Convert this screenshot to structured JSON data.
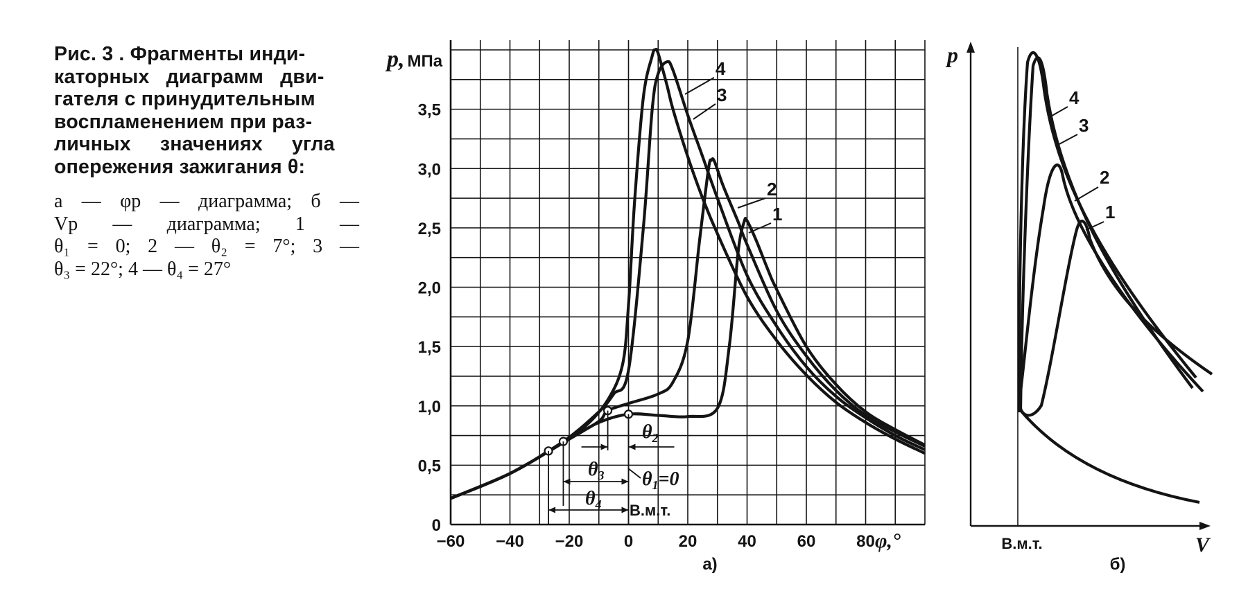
{
  "caption": {
    "title_lines": [
      "Рис. 3 . Фрагменты инди-",
      "каторных диаграмм дви-",
      "гателя с принудительным",
      "воспламенением при раз-",
      "личных значениях угла",
      "опережения зажигания θ:"
    ],
    "legend_lines": [
      "а — φр — диаграмма; б —",
      "Vp — диаграмма; 1 —",
      "θ₁ = 0; 2 — θ₂ = 7°; 3 —",
      "θ₃ = 22°; 4 — θ₄ = 27°"
    ]
  },
  "chart_data": [
    {
      "panel": "а)",
      "type": "line",
      "ylabel": "p, МПа",
      "xlabel": "φ,°",
      "xlim": [
        -60,
        100
      ],
      "ylim": [
        0,
        4.0
      ],
      "xticks": [
        "−60",
        "−40",
        "−20",
        "0",
        "20",
        "40",
        "60",
        "80"
      ],
      "yticks": [
        "0",
        "0,5",
        "1,0",
        "1,5",
        "2,0",
        "2,5",
        "3,0",
        "3,5"
      ],
      "grid": true,
      "series": [
        {
          "name": "1",
          "theta": "θ₁ = 0",
          "x": [
            -60,
            -40,
            -20,
            -10,
            0,
            10,
            20,
            30,
            34,
            37,
            39,
            40,
            43,
            47,
            50,
            60,
            70,
            80,
            90,
            100
          ],
          "y": [
            0.22,
            0.43,
            0.72,
            0.86,
            0.93,
            0.92,
            0.91,
            0.98,
            1.5,
            2.3,
            2.55,
            2.56,
            2.4,
            2.15,
            1.98,
            1.5,
            1.18,
            0.95,
            0.8,
            0.67
          ]
        },
        {
          "name": "2",
          "theta": "θ₂ = 7°",
          "x": [
            -60,
            -40,
            -20,
            -10,
            -7,
            0,
            10,
            15,
            20,
            24,
            27,
            28,
            29,
            32,
            37,
            40,
            50,
            60,
            70,
            80,
            90,
            100
          ],
          "y": [
            0.22,
            0.43,
            0.72,
            0.87,
            0.96,
            1.02,
            1.1,
            1.2,
            1.55,
            2.4,
            3.0,
            3.07,
            3.06,
            2.85,
            2.55,
            2.36,
            1.8,
            1.42,
            1.13,
            0.92,
            0.78,
            0.66
          ]
        },
        {
          "name": "3",
          "theta": "θ₃ = 22°",
          "x": [
            -60,
            -40,
            -22,
            -10,
            -5,
            0,
            5,
            8,
            10,
            13,
            15,
            20,
            25,
            30,
            40,
            50,
            60,
            70,
            80,
            90,
            100
          ],
          "y": [
            0.22,
            0.43,
            0.7,
            0.95,
            1.1,
            1.3,
            2.5,
            3.5,
            3.8,
            3.9,
            3.83,
            3.45,
            3.1,
            2.75,
            2.1,
            1.67,
            1.33,
            1.08,
            0.9,
            0.75,
            0.63
          ]
        },
        {
          "name": "4",
          "theta": "θ₄ = 27°",
          "x": [
            -60,
            -40,
            -27,
            -15,
            -7,
            -2,
            0,
            2,
            5,
            8,
            9,
            10,
            13,
            15,
            20,
            25,
            30,
            40,
            50,
            60,
            70,
            80,
            90,
            100
          ],
          "y": [
            0.22,
            0.43,
            0.62,
            0.82,
            1.05,
            1.35,
            1.85,
            2.7,
            3.6,
            3.95,
            4.0,
            3.97,
            3.7,
            3.5,
            3.1,
            2.75,
            2.45,
            1.92,
            1.55,
            1.26,
            1.03,
            0.86,
            0.72,
            0.6
          ]
        }
      ],
      "markers": [
        {
          "label": "θ₁ = 0",
          "x": 0,
          "y": 0.93
        },
        {
          "label": "θ₂",
          "x": -7,
          "y": 0.96
        },
        {
          "label": "θ₃",
          "x": -22,
          "y": 0.7
        },
        {
          "label": "θ₄",
          "x": -27,
          "y": 0.62
        }
      ],
      "annotation": "В.м.т."
    },
    {
      "panel": "б)",
      "type": "line",
      "ylabel": "p",
      "xlabel": "V",
      "xtick_label": "В.м.т.",
      "series_labels": [
        "4",
        "3",
        "2",
        "1"
      ]
    }
  ]
}
